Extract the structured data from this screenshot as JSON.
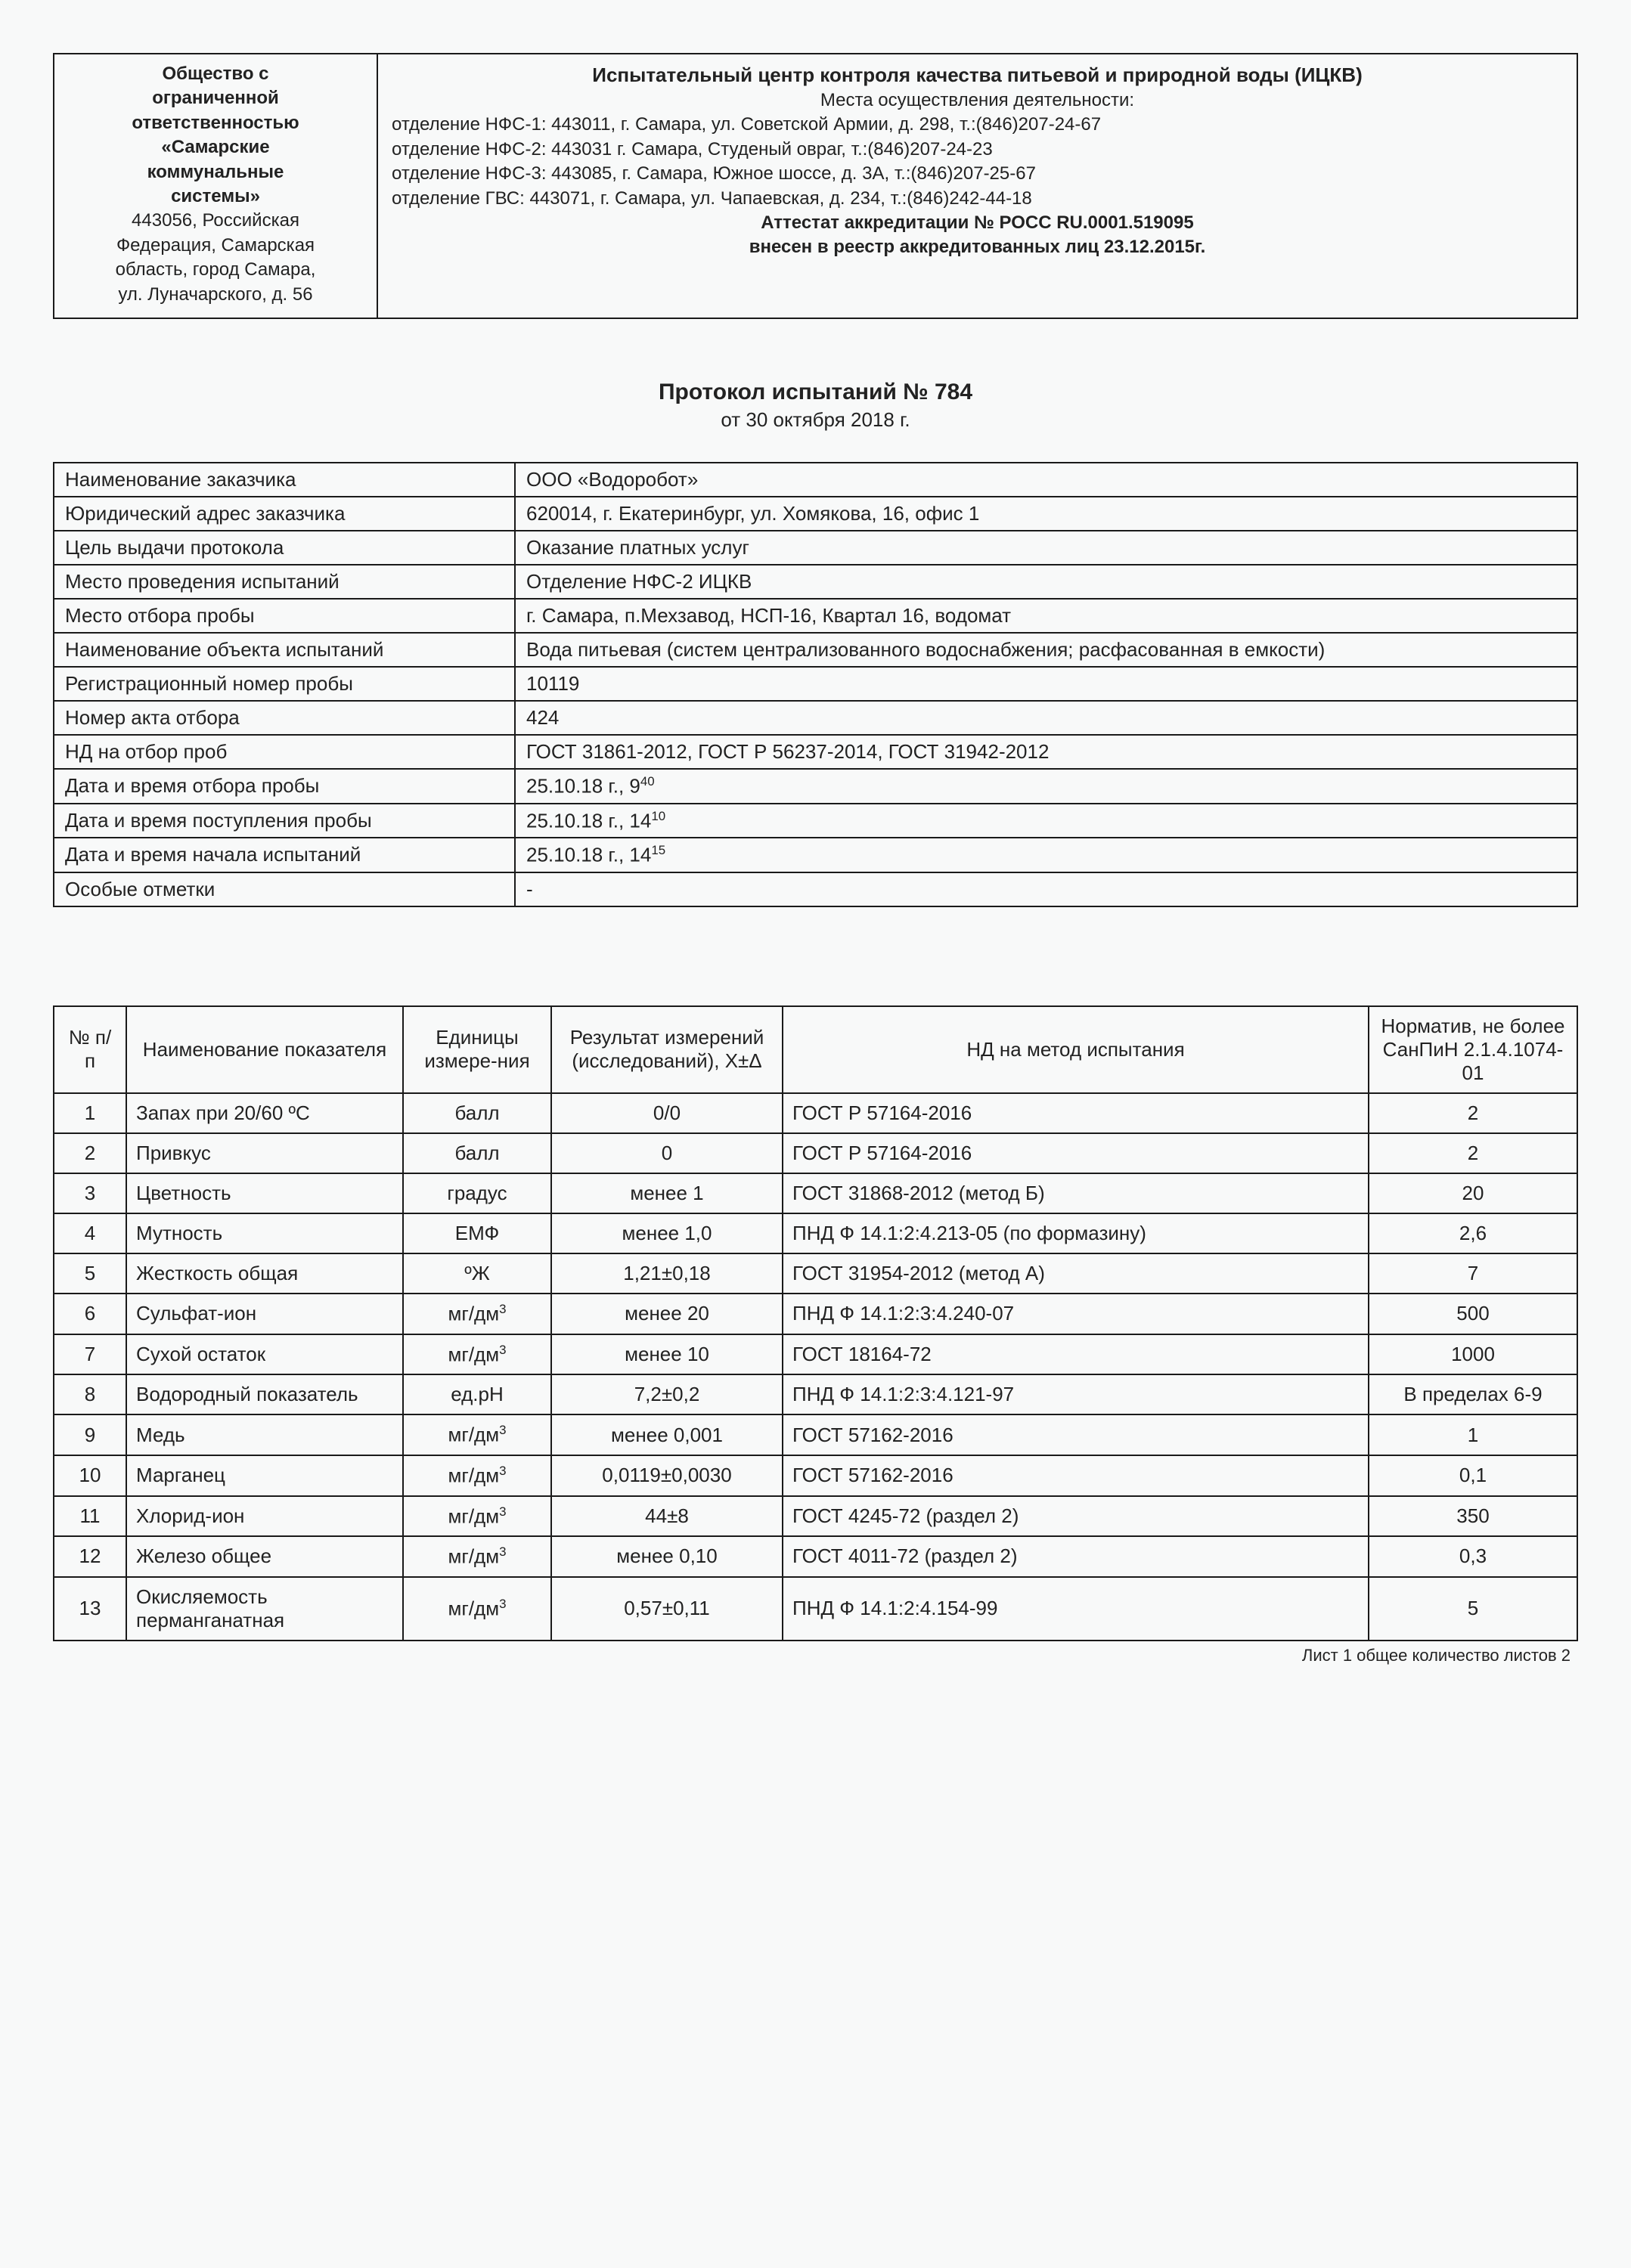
{
  "header": {
    "org_l1": "Общество с",
    "org_l2": "ограниченной",
    "org_l3": "ответственностью",
    "org_l4": "«Самарские",
    "org_l5": "коммунальные",
    "org_l6": "системы»",
    "org_addr1": "443056, Российская",
    "org_addr2": "Федерация, Самарская",
    "org_addr3": "область, город Самара,",
    "org_addr4": "ул. Луначарского, д. 56",
    "center_title": "Испытательный центр контроля качества питьевой и природной воды (ИЦКВ)",
    "places_head": "Места осуществления деятельности:",
    "dep1": "отделение НФС-1: 443011, г. Самара, ул. Советской Армии, д. 298, т.:(846)207-24-67",
    "dep2": "отделение НФС-2: 443031 г. Самара, Студеный овраг, т.:(846)207-24-23",
    "dep3": "отделение НФС-3: 443085, г. Самара, Южное шоссе, д. 3А, т.:(846)207-25-67",
    "dep4": "отделение ГВС: 443071, г. Самара, ул. Чапаевская, д. 234, т.:(846)242-44-18",
    "attestat": "Аттестат аккредитации № РОСС RU.0001.519095",
    "registry": "внесен в реестр аккредитованных лиц 23.12.2015г."
  },
  "protocol": {
    "title": "Протокол испытаний № 784",
    "date": "от 30 октября 2018 г."
  },
  "info": [
    {
      "label": "Наименование заказчика",
      "value": "ООО «Водоробот»"
    },
    {
      "label": "Юридический адрес заказчика",
      "value": "620014, г. Екатеринбург, ул. Хомякова, 16, офис 1"
    },
    {
      "label": "Цель выдачи протокола",
      "value": "Оказание платных услуг"
    },
    {
      "label": "Место проведения испытаний",
      "value": "Отделение НФС-2 ИЦКВ"
    },
    {
      "label": "Место отбора пробы",
      "value": "г. Самара, п.Мехзавод, НСП-16, Квартал 16, водомат"
    },
    {
      "label": "Наименование объекта испытаний",
      "value": "Вода питьевая (систем централизованного водоснабжения; расфасованная в емкости)"
    },
    {
      "label": "Регистрационный номер пробы",
      "value": "10119"
    },
    {
      "label": "Номер акта отбора",
      "value": "424"
    },
    {
      "label": "НД на отбор проб",
      "value": "ГОСТ 31861-2012, ГОСТ Р 56237-2014, ГОСТ 31942-2012"
    },
    {
      "label": "Дата и время отбора пробы",
      "value": "25.10.18 г.,  9<sup>40</sup>"
    },
    {
      "label": "Дата и время поступления пробы",
      "value": "25.10.18 г., 14<sup>10</sup>"
    },
    {
      "label": "Дата и время начала испытаний",
      "value": "25.10.18 г., 14<sup>15</sup>"
    },
    {
      "label": "Особые отметки",
      "value": "-"
    }
  ],
  "results_header": {
    "num": "№ п/п",
    "name": "Наименование показателя",
    "unit": "Единицы измере-ния",
    "result": "Результат измерений (исследований), X±Δ",
    "method": "НД на метод испытания",
    "norm": "Норматив, не более СанПиН 2.1.4.1074-01"
  },
  "results": [
    {
      "n": "1",
      "name": "Запах при  20/60 ºС",
      "unit": "балл",
      "res": "0/0",
      "method": "ГОСТ Р 57164-2016",
      "norm": "2"
    },
    {
      "n": "2",
      "name": "Привкус",
      "unit": "балл",
      "res": "0",
      "method": "ГОСТ Р 57164-2016",
      "norm": "2"
    },
    {
      "n": "3",
      "name": "Цветность",
      "unit": "градус",
      "res": "менее 1",
      "method": "ГОСТ 31868-2012 (метод Б)",
      "norm": "20"
    },
    {
      "n": "4",
      "name": "Мутность",
      "unit": "ЕМФ",
      "res": "менее 1,0",
      "method": "ПНД Ф 14.1:2:4.213-05 (по формазину)",
      "norm": "2,6"
    },
    {
      "n": "5",
      "name": "Жесткость общая",
      "unit": "ºЖ",
      "res": "1,21±0,18",
      "method": "ГОСТ 31954-2012 (метод А)",
      "norm": "7"
    },
    {
      "n": "6",
      "name": "Сульфат-ион",
      "unit": "мг/дм<sup>3</sup>",
      "res": "менее 20",
      "method": "ПНД Ф 14.1:2:3:4.240-07",
      "norm": "500"
    },
    {
      "n": "7",
      "name": "Сухой остаток",
      "unit": "мг/дм<sup>3</sup>",
      "res": "менее 10",
      "method": "ГОСТ 18164-72",
      "norm": "1000"
    },
    {
      "n": "8",
      "name": "Водородный показатель",
      "unit": "ед.рН",
      "res": "7,2±0,2",
      "method": "ПНД Ф 14.1:2:3:4.121-97",
      "norm": "В пределах 6-9"
    },
    {
      "n": "9",
      "name": "Медь",
      "unit": "мг/дм<sup>3</sup>",
      "res": "менее 0,001",
      "method": "ГОСТ 57162-2016",
      "norm": "1"
    },
    {
      "n": "10",
      "name": "Марганец",
      "unit": "мг/дм<sup>3</sup>",
      "res": "0,0119±0,0030",
      "method": "ГОСТ 57162-2016",
      "norm": "0,1"
    },
    {
      "n": "11",
      "name": "Хлорид-ион",
      "unit": "мг/дм<sup>3</sup>",
      "res": "44±8",
      "method": "ГОСТ 4245-72 (раздел 2)",
      "norm": "350"
    },
    {
      "n": "12",
      "name": "Железо общее",
      "unit": "мг/дм<sup>3</sup>",
      "res": "менее 0,10",
      "method": "ГОСТ 4011-72 (раздел 2)",
      "norm": "0,3"
    },
    {
      "n": "13",
      "name": "Окисляемость перманганатная",
      "unit": "мг/дм<sup>3</sup>",
      "res": "0,57±0,11",
      "method": "ПНД Ф 14.1:2:4.154-99",
      "norm": "5"
    }
  ],
  "footer": "Лист 1 общее количество листов 2"
}
